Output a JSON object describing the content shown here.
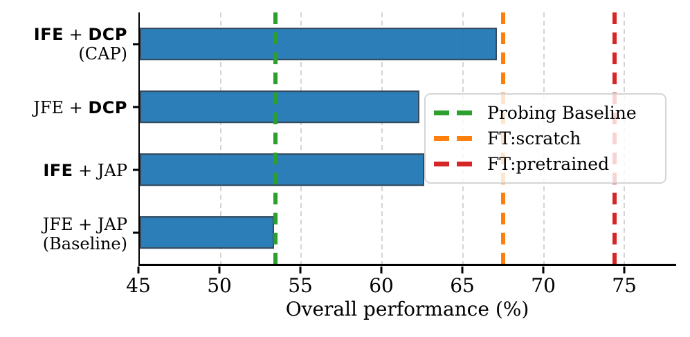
{
  "chart_data": {
    "type": "bar",
    "orientation": "horizontal",
    "title": "",
    "xlabel": "Overall performance (%)",
    "ylabel": "",
    "xlim": [
      45,
      78.2
    ],
    "xticks": [
      45,
      50,
      55,
      60,
      65,
      70,
      75
    ],
    "grid": true,
    "categories": [
      {
        "name": "IFE + DCP (CAP)",
        "segments": [
          {
            "text": "IFE",
            "bold": true
          },
          {
            "text": " + ",
            "bold": false
          },
          {
            "text": "DCP",
            "bold": true
          }
        ],
        "sub": "(CAP)"
      },
      {
        "name": "JFE + DCP",
        "segments": [
          {
            "text": "JFE + ",
            "bold": false
          },
          {
            "text": "DCP",
            "bold": true
          }
        ],
        "sub": ""
      },
      {
        "name": "IFE + JAP",
        "segments": [
          {
            "text": "IFE",
            "bold": true
          },
          {
            "text": " + JAP",
            "bold": false
          }
        ],
        "sub": ""
      },
      {
        "name": "JFE + JAP (Baseline)",
        "segments": [
          {
            "text": "JFE + JAP",
            "bold": false
          }
        ],
        "sub": "(Baseline)"
      }
    ],
    "values": [
      67.1,
      62.3,
      62.6,
      53.3
    ],
    "bar_color": "#1f77b4",
    "bar_edge_color": "#2b3e50",
    "vlines": [
      {
        "label": "Probing Baseline",
        "value": 53.4,
        "color": "#2ca02c"
      },
      {
        "label": "FT:scratch",
        "value": 67.5,
        "color": "#ff7f0e"
      },
      {
        "label": "FT:pretrained",
        "value": 74.4,
        "color": "#d62728"
      }
    ],
    "legend": {
      "position": "center-right",
      "items": [
        "Probing Baseline",
        "FT:scratch",
        "FT:pretrained"
      ]
    },
    "colors": {
      "grid_color": "#d4d4d4",
      "axis_color": "#000000",
      "legend_border": "#d5d5d5",
      "background": "#ffffff"
    }
  }
}
